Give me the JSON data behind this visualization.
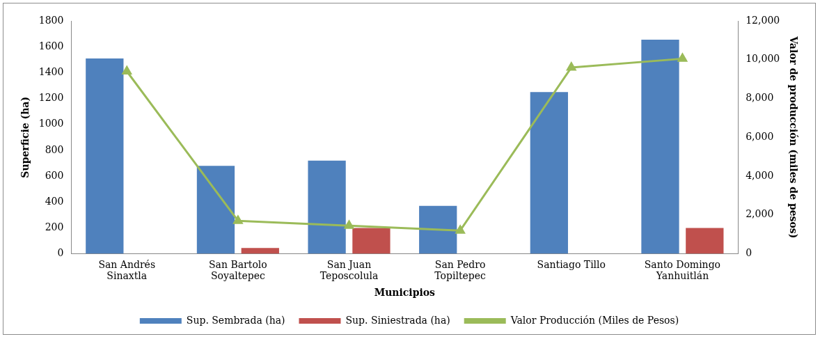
{
  "chart_data": {
    "type": "bar",
    "xlabel": "Municipios",
    "ylabel": "Superficie (ha)",
    "y2label": "Valor de producción (miles de pesos)",
    "categories": [
      "San Andrés\nSinaxtla",
      "San Bartolo\nSoyaltepec",
      "San Juan\nTeposcolula",
      "San Pedro\nTopiltepec",
      "Santiago Tillo",
      "Santo Domingo\nYanhuitlán"
    ],
    "series": [
      {
        "name": "Sup. Sembrada (ha)",
        "color": "#4f81bd",
        "values": [
          1510,
          680,
          720,
          370,
          1250,
          1655
        ]
      },
      {
        "name": "Sup. Siniestrada (ha)",
        "color": "#c0504d",
        "values": [
          null,
          45,
          200,
          null,
          null,
          200
        ]
      },
      {
        "name": "Valor Producción (Miles de Pesos)",
        "type": "line",
        "axis": "y2",
        "marker": "triangle",
        "color": "#9bbb59",
        "values": [
          9400,
          1700,
          1450,
          1200,
          9600,
          10050
        ]
      }
    ],
    "ylim": [
      0,
      1800
    ],
    "yticks": [
      0,
      200,
      400,
      600,
      800,
      1000,
      1200,
      1400,
      1600,
      1800
    ],
    "y2lim": [
      0,
      12000
    ],
    "y2ticks": [
      0,
      {
        "value": 2000,
        "label": "2,000"
      },
      {
        "value": 4000,
        "label": "4,000"
      },
      {
        "value": 6000,
        "label": "6,000"
      },
      {
        "value": 8000,
        "label": "8,000"
      },
      {
        "value": 10000,
        "label": "10,000"
      },
      {
        "value": 12000,
        "label": "12,000"
      }
    ],
    "grid": false,
    "legend": "bottom"
  }
}
